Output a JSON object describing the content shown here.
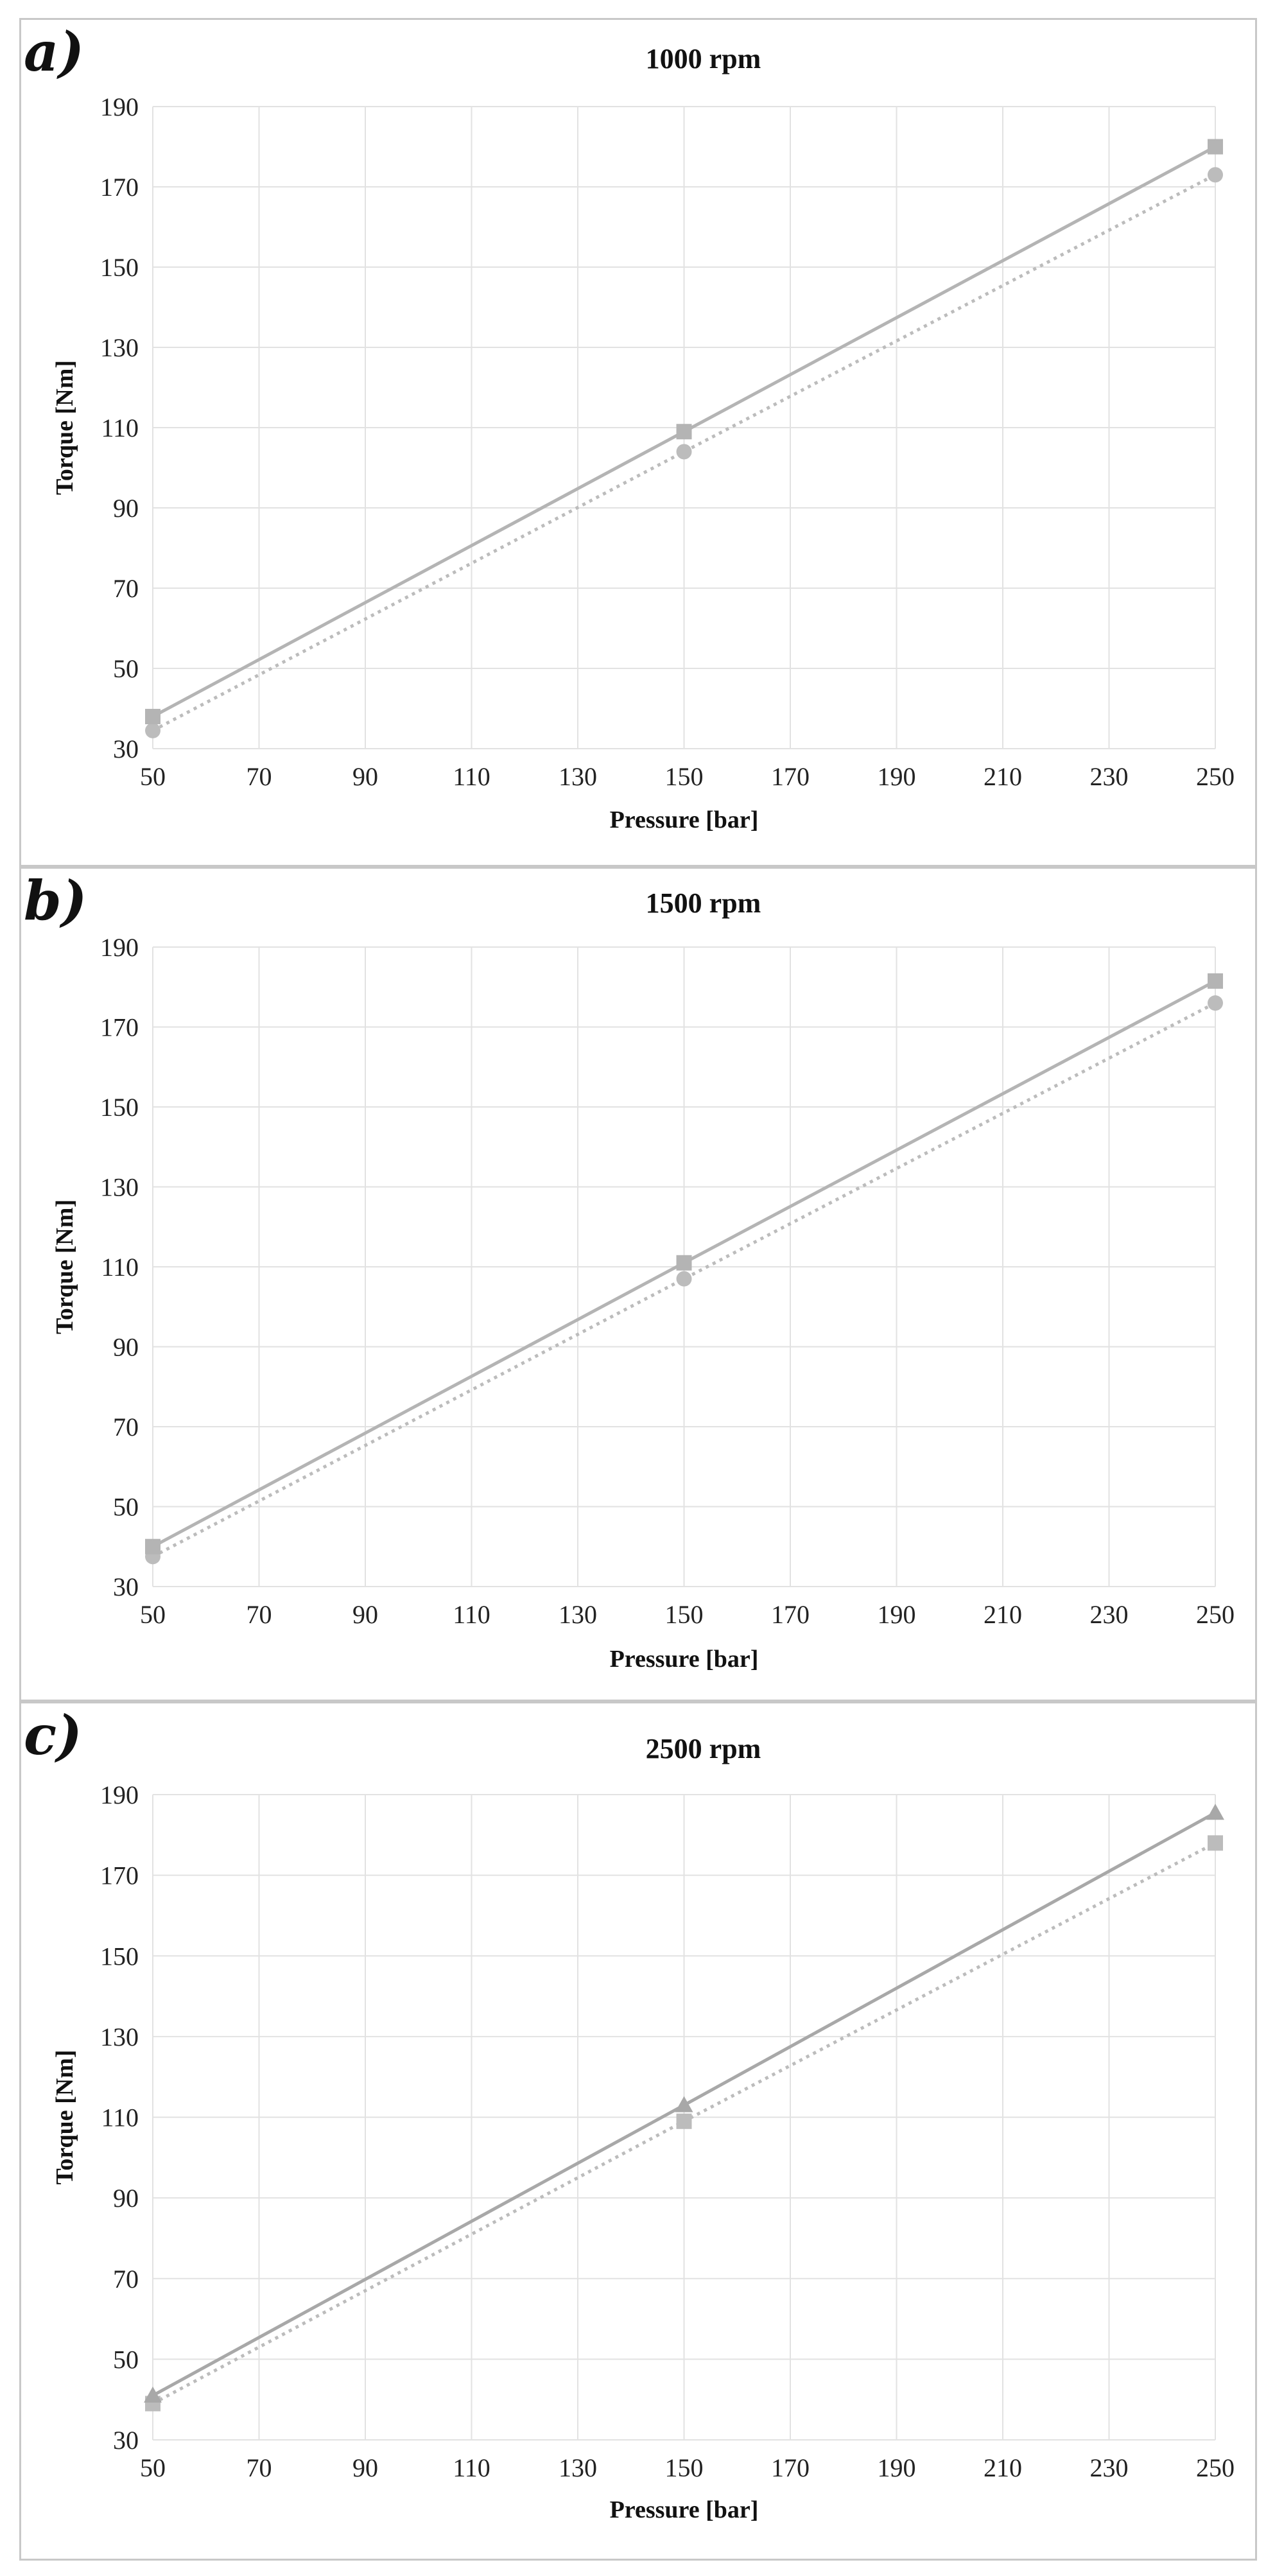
{
  "panels": [
    {
      "label": "a)"
    },
    {
      "label": "b)"
    },
    {
      "label": "c)"
    }
  ],
  "colors": {
    "series_solid": "#b4b4b4",
    "series_dotted": "#bcbcbc",
    "series_solid_c": "#a8a8a8",
    "grid": "#e2e2e2"
  },
  "chart_data": [
    {
      "type": "line",
      "title": "1000 rpm",
      "xlabel": "Pressure [bar]",
      "ylabel": "Torque [Nm]",
      "xlim": [
        50,
        250
      ],
      "ylim": [
        30,
        190
      ],
      "xticks": [
        50,
        70,
        90,
        110,
        130,
        150,
        170,
        190,
        210,
        230,
        250
      ],
      "yticks": [
        30,
        50,
        70,
        90,
        110,
        130,
        150,
        170,
        190
      ],
      "x": [
        50,
        150,
        250
      ],
      "series": [
        {
          "name": "solid",
          "marker": "square",
          "style": "solid",
          "values": [
            38,
            109,
            180
          ]
        },
        {
          "name": "dotted",
          "marker": "circle",
          "style": "dotted",
          "values": [
            34.5,
            104,
            173
          ]
        }
      ]
    },
    {
      "type": "line",
      "title": "1500 rpm",
      "xlabel": "Pressure [bar]",
      "ylabel": "Torque [Nm]",
      "xlim": [
        50,
        250
      ],
      "ylim": [
        30,
        190
      ],
      "xticks": [
        50,
        70,
        90,
        110,
        130,
        150,
        170,
        190,
        210,
        230,
        250
      ],
      "yticks": [
        30,
        50,
        70,
        90,
        110,
        130,
        150,
        170,
        190
      ],
      "x": [
        50,
        150,
        250
      ],
      "series": [
        {
          "name": "solid",
          "marker": "square",
          "style": "solid",
          "values": [
            40,
            111,
            181.5
          ]
        },
        {
          "name": "dotted",
          "marker": "circle",
          "style": "dotted",
          "values": [
            37.5,
            107,
            176
          ]
        }
      ]
    },
    {
      "type": "line",
      "title": "2500 rpm",
      "xlabel": "Pressure [bar]",
      "ylabel": "Torque [Nm]",
      "xlim": [
        50,
        250
      ],
      "ylim": [
        30,
        190
      ],
      "xticks": [
        50,
        70,
        90,
        110,
        130,
        150,
        170,
        190,
        210,
        230,
        250
      ],
      "yticks": [
        30,
        50,
        70,
        90,
        110,
        130,
        150,
        170,
        190
      ],
      "x": [
        50,
        150,
        250
      ],
      "series": [
        {
          "name": "solid",
          "marker": "triangle",
          "style": "solid",
          "values": [
            41,
            113,
            185.5
          ]
        },
        {
          "name": "dotted",
          "marker": "square",
          "style": "dotted",
          "values": [
            39,
            109,
            178
          ]
        }
      ]
    }
  ]
}
